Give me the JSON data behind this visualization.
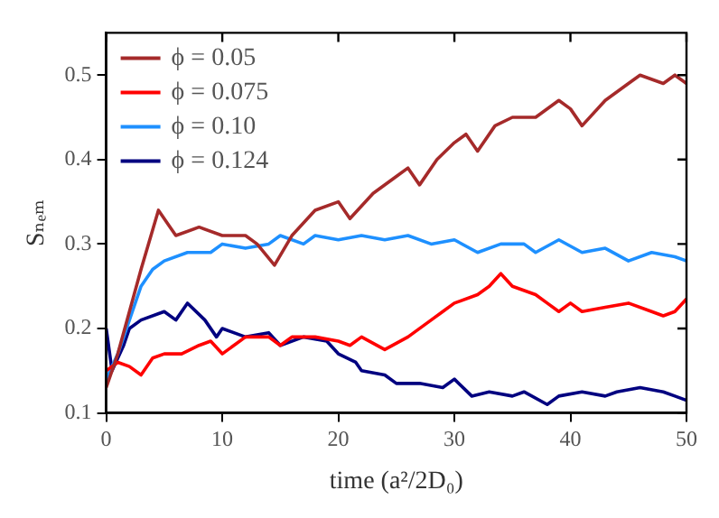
{
  "chart_data": {
    "type": "line",
    "xlabel": "time (a²/2D₀)",
    "ylabel": "Sₙₑₘ",
    "xlim": [
      0,
      50
    ],
    "ylim": [
      0.1,
      0.55
    ],
    "xticks": [
      0,
      10,
      20,
      30,
      40,
      50
    ],
    "yticks": [
      0.1,
      0.2,
      0.3,
      0.4,
      0.5
    ],
    "grid": false,
    "legend": "top left",
    "marker": "none",
    "line_style": "solid",
    "series": [
      {
        "name": "ϕ = 0.05",
        "color": "#a52a2a",
        "x": [
          0,
          1,
          2,
          3,
          4.5,
          6,
          8,
          10,
          12,
          13,
          14.5,
          16,
          18,
          20,
          21,
          23,
          25,
          26,
          27,
          28.5,
          30,
          31,
          32,
          33.5,
          35,
          37,
          39,
          40,
          41,
          43,
          45,
          46,
          48,
          49,
          50
        ],
        "values": [
          0.13,
          0.17,
          0.22,
          0.27,
          0.34,
          0.31,
          0.32,
          0.31,
          0.31,
          0.3,
          0.275,
          0.31,
          0.34,
          0.35,
          0.33,
          0.36,
          0.38,
          0.39,
          0.37,
          0.4,
          0.42,
          0.43,
          0.41,
          0.44,
          0.45,
          0.45,
          0.47,
          0.46,
          0.44,
          0.47,
          0.49,
          0.5,
          0.49,
          0.5,
          0.49
        ]
      },
      {
        "name": "ϕ = 0.075",
        "color": "#ff0000",
        "x": [
          0,
          1,
          2,
          3,
          4,
          5,
          6.5,
          8,
          9,
          10,
          11,
          12,
          14,
          15,
          16,
          18,
          20,
          21,
          22,
          24,
          26,
          28,
          29,
          30,
          32,
          33,
          34,
          35,
          37,
          38,
          39,
          40,
          41,
          43,
          45,
          47,
          48,
          49,
          50
        ],
        "values": [
          0.15,
          0.16,
          0.155,
          0.145,
          0.165,
          0.17,
          0.17,
          0.18,
          0.185,
          0.17,
          0.18,
          0.19,
          0.19,
          0.18,
          0.19,
          0.19,
          0.185,
          0.18,
          0.19,
          0.175,
          0.19,
          0.21,
          0.22,
          0.23,
          0.24,
          0.25,
          0.265,
          0.25,
          0.24,
          0.23,
          0.22,
          0.23,
          0.22,
          0.225,
          0.23,
          0.22,
          0.215,
          0.22,
          0.235
        ]
      },
      {
        "name": "ϕ = 0.10",
        "color": "#1e90ff",
        "x": [
          0,
          1,
          2,
          3,
          4,
          5,
          7,
          9,
          10,
          12,
          14,
          15,
          17,
          18,
          20,
          22,
          24,
          26,
          28,
          30,
          32,
          34,
          36,
          37,
          39,
          41,
          43,
          45,
          47,
          49,
          50
        ],
        "values": [
          0.14,
          0.17,
          0.21,
          0.25,
          0.27,
          0.28,
          0.29,
          0.29,
          0.3,
          0.295,
          0.3,
          0.31,
          0.3,
          0.31,
          0.305,
          0.31,
          0.305,
          0.31,
          0.3,
          0.305,
          0.29,
          0.3,
          0.3,
          0.29,
          0.305,
          0.29,
          0.295,
          0.28,
          0.29,
          0.285,
          0.28
        ]
      },
      {
        "name": "ϕ = 0.124",
        "color": "#000080",
        "x": [
          0,
          0.5,
          1.5,
          2,
          3,
          5,
          6,
          7,
          8.5,
          9.5,
          10,
          12,
          14,
          15,
          17,
          19,
          20,
          21.5,
          22,
          24,
          25,
          27,
          29,
          30,
          31.5,
          33,
          35,
          36,
          38,
          39,
          41,
          43,
          44,
          46,
          48,
          49,
          50
        ],
        "values": [
          0.2,
          0.15,
          0.18,
          0.2,
          0.21,
          0.22,
          0.21,
          0.23,
          0.21,
          0.19,
          0.2,
          0.19,
          0.195,
          0.18,
          0.19,
          0.185,
          0.17,
          0.16,
          0.15,
          0.145,
          0.135,
          0.135,
          0.13,
          0.14,
          0.12,
          0.125,
          0.12,
          0.125,
          0.11,
          0.12,
          0.125,
          0.12,
          0.125,
          0.13,
          0.125,
          0.12,
          0.115
        ]
      }
    ]
  }
}
